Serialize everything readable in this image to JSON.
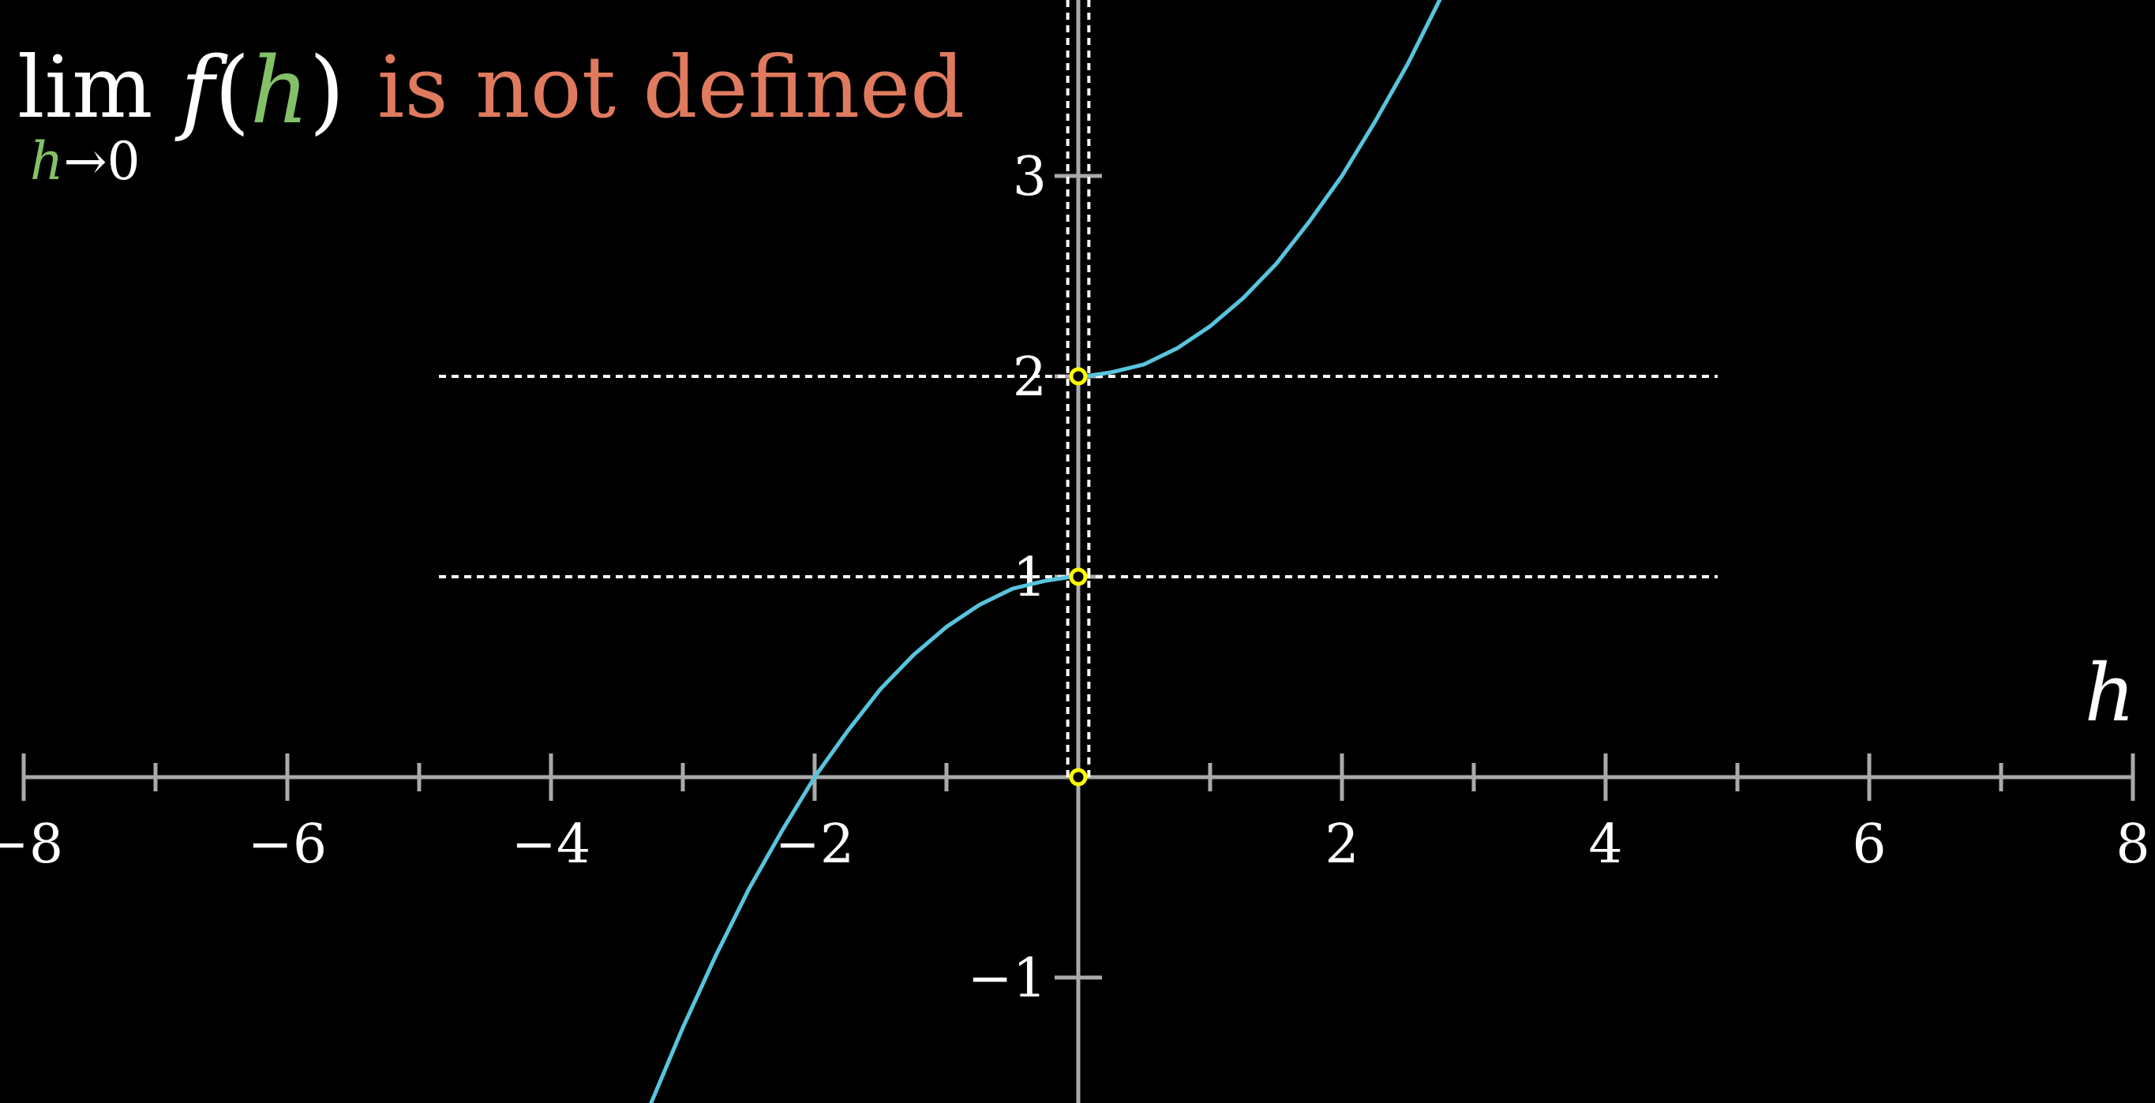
{
  "title": {
    "lim_word": "lim",
    "lim_sub_var": "h",
    "lim_sub_rest": "→0",
    "func_name": "f",
    "open_paren": "(",
    "func_arg": "h",
    "close_paren": ")",
    "status_text": "is not defined"
  },
  "colors": {
    "background": "#000000",
    "axis": "#aaaaaa",
    "curve": "#58c4dd",
    "dashed": "#ffffff",
    "point": "#ffff00",
    "variable": "#83c167",
    "status": "#e07a5f"
  },
  "chart_data": {
    "type": "line",
    "xlabel": "h",
    "ylabel": "",
    "xlim": [
      -8,
      8
    ],
    "ylim": [
      -1.6,
      3.9
    ],
    "x_ticks": [
      -8,
      -7,
      -6,
      -5,
      -4,
      -3,
      -2,
      -1,
      1,
      2,
      3,
      4,
      5,
      6,
      7,
      8
    ],
    "x_tick_labels": [
      {
        "value": -8,
        "label": "−8"
      },
      {
        "value": -6,
        "label": "−6"
      },
      {
        "value": -4,
        "label": "−4"
      },
      {
        "value": -2,
        "label": "−2"
      },
      {
        "value": 2,
        "label": "2"
      },
      {
        "value": 4,
        "label": "4"
      },
      {
        "value": 6,
        "label": "6"
      },
      {
        "value": 8,
        "label": "8"
      }
    ],
    "y_ticks": [
      -1,
      1,
      2,
      3
    ],
    "y_tick_labels": [
      {
        "value": -1,
        "label": "−1"
      },
      {
        "value": 1,
        "label": "1"
      },
      {
        "value": 2,
        "label": "2"
      },
      {
        "value": 3,
        "label": "3"
      }
    ],
    "series": [
      {
        "piece": "left",
        "x": [
          -3.25,
          -3.0,
          -2.75,
          -2.5,
          -2.25,
          -2.0,
          -1.75,
          -1.5,
          -1.25,
          -1.0,
          -0.75,
          -0.5,
          -0.25,
          -0.05
        ],
        "y": [
          -1.64,
          -1.25,
          -0.89,
          -0.56,
          -0.27,
          0.0,
          0.23,
          0.44,
          0.61,
          0.75,
          0.86,
          0.94,
          0.98,
          1.0
        ]
      },
      {
        "piece": "right",
        "x": [
          0.05,
          0.25,
          0.5,
          0.75,
          1.0,
          1.25,
          1.5,
          1.75,
          2.0,
          2.25,
          2.5,
          2.75
        ],
        "y": [
          2.0,
          2.02,
          2.06,
          2.14,
          2.25,
          2.39,
          2.56,
          2.77,
          3.0,
          3.27,
          3.56,
          3.89
        ]
      }
    ],
    "horizontal_dashed_lines": [
      {
        "y": 1,
        "x_range": [
          -4.85,
          4.85
        ]
      },
      {
        "y": 2,
        "x_range": [
          -4.85,
          4.85
        ]
      }
    ],
    "vertical_dashed_lines": [
      -0.08,
      0.08
    ],
    "open_points": [
      {
        "x": 0,
        "y": 2
      },
      {
        "x": 0,
        "y": 1
      },
      {
        "x": 0,
        "y": 0
      }
    ]
  }
}
